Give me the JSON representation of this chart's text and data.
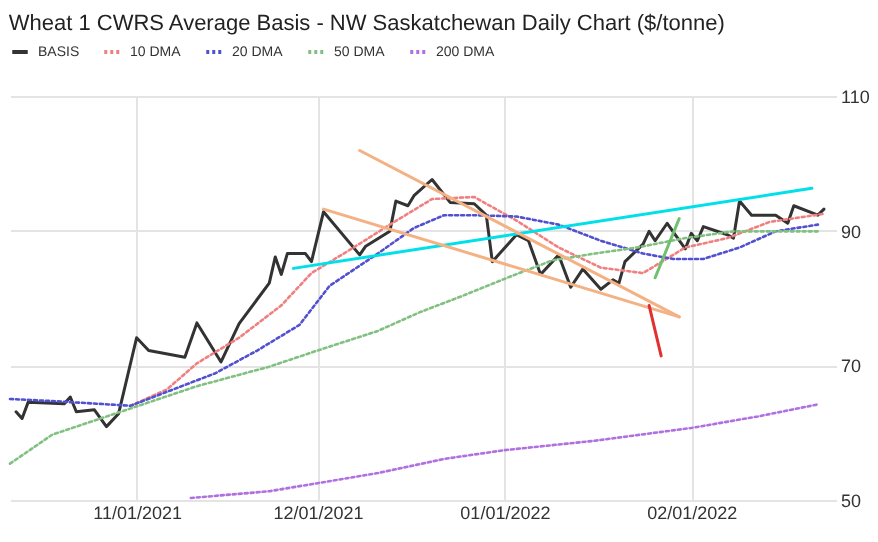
{
  "chart_data": {
    "type": "line",
    "title": "Wheat 1 CWRS Average Basis - NW Saskatchewan Daily Chart ($/tonne)",
    "xlim": [
      "2021-10-11",
      "2022-02-25"
    ],
    "xticks": [
      {
        "value": "2021-11-01",
        "label": "11/01/2021"
      },
      {
        "value": "2021-12-01",
        "label": "12/01/2021"
      },
      {
        "value": "2022-01-01",
        "label": "01/01/2022"
      },
      {
        "value": "2022-02-01",
        "label": "02/01/2022"
      }
    ],
    "ylim": [
      50,
      110
    ],
    "yticks": [
      50,
      70,
      90,
      110
    ],
    "grid": true,
    "legend": "top",
    "marker": "none",
    "series": [
      {
        "name": "BASIS",
        "color": "#333333",
        "line_style": "solid",
        "x": [
          "2021-10-12",
          "2021-10-13",
          "2021-10-14",
          "2021-10-20",
          "2021-10-21",
          "2021-10-22",
          "2021-10-25",
          "2021-10-27",
          "2021-10-29",
          "2021-11-01",
          "2021-11-03",
          "2021-11-09",
          "2021-11-11",
          "2021-11-15",
          "2021-11-18",
          "2021-11-23",
          "2021-11-24",
          "2021-11-25",
          "2021-11-26",
          "2021-11-29",
          "2021-11-30",
          "2021-12-02",
          "2021-12-08",
          "2021-12-09",
          "2021-12-13",
          "2021-12-14",
          "2021-12-16",
          "2021-12-17",
          "2021-12-20",
          "2021-12-23",
          "2021-12-27",
          "2021-12-29",
          "2021-12-30",
          "2022-01-03",
          "2022-01-05",
          "2022-01-07",
          "2022-01-10",
          "2022-01-12",
          "2022-01-14",
          "2022-01-17",
          "2022-01-19",
          "2022-01-20",
          "2022-01-21",
          "2022-01-24",
          "2022-01-25",
          "2022-01-26",
          "2022-01-28",
          "2022-01-31",
          "2022-02-01",
          "2022-02-02",
          "2022-02-03",
          "2022-02-07",
          "2022-02-08",
          "2022-02-09",
          "2022-02-11",
          "2022-02-15",
          "2022-02-17",
          "2022-02-18",
          "2022-02-22",
          "2022-02-23"
        ],
        "values": [
          63.1,
          62.1,
          64.5,
          64.3,
          65.3,
          63.1,
          63.4,
          60.9,
          62.8,
          74.1,
          72.2,
          71.2,
          76.3,
          70.5,
          76.2,
          82.2,
          86.1,
          83.5,
          86.6,
          86.6,
          85.4,
          92.8,
          86.4,
          87.7,
          89.9,
          94.4,
          93.7,
          95.2,
          97.6,
          94.2,
          94.0,
          92.3,
          85.4,
          89.4,
          88.5,
          83.5,
          86.4,
          81.6,
          84.3,
          81.3,
          82.7,
          82.2,
          85.4,
          88.0,
          89.9,
          88.5,
          91.1,
          87.3,
          89.6,
          88.5,
          90.6,
          89.4,
          88.9,
          94.4,
          92.3,
          92.3,
          91.1,
          93.7,
          92.3,
          93.2
        ]
      },
      {
        "name": "10 DMA",
        "color": "#f08080",
        "line_style": "dotted",
        "x": [
          "2021-10-31",
          "2021-11-06",
          "2021-11-11",
          "2021-11-18",
          "2021-11-25",
          "2021-11-30",
          "2021-12-07",
          "2021-12-13",
          "2021-12-20",
          "2021-12-27",
          "2022-01-03",
          "2022-01-10",
          "2022-01-17",
          "2022-01-24",
          "2022-01-31",
          "2022-02-07",
          "2022-02-14",
          "2022-02-23"
        ],
        "values": [
          64.0,
          66.4,
          70.3,
          74.1,
          78.9,
          83.7,
          87.5,
          90.9,
          94.7,
          95.0,
          91.5,
          87.5,
          84.5,
          83.7,
          87.5,
          88.9,
          91.3,
          92.5
        ]
      },
      {
        "name": "20 DMA",
        "color": "#5050d0",
        "line_style": "dotted",
        "x": [
          "2021-10-11",
          "2021-10-18",
          "2021-10-31",
          "2021-11-07",
          "2021-11-14",
          "2021-11-21",
          "2021-11-28",
          "2021-12-03",
          "2021-12-11",
          "2021-12-17",
          "2021-12-22",
          "2021-12-27",
          "2022-01-03",
          "2022-01-10",
          "2022-01-17",
          "2022-01-24",
          "2022-01-29",
          "2022-02-03",
          "2022-02-09",
          "2022-02-15",
          "2022-02-22"
        ],
        "values": [
          65.0,
          64.7,
          64.0,
          66.4,
          68.8,
          72.2,
          76.0,
          81.8,
          86.6,
          90.4,
          92.3,
          92.3,
          92.1,
          90.9,
          88.5,
          86.6,
          85.8,
          85.8,
          87.5,
          89.9,
          90.9
        ]
      },
      {
        "name": "50 DMA",
        "color": "#80c080",
        "line_style": "dotted",
        "x": [
          "2021-10-11",
          "2021-10-18",
          "2021-10-31",
          "2021-11-11",
          "2021-11-23",
          "2021-12-01",
          "2021-12-11",
          "2021-12-18",
          "2021-12-25",
          "2022-01-02",
          "2022-01-09",
          "2022-01-16",
          "2022-01-23",
          "2022-01-31",
          "2022-02-08",
          "2022-02-16",
          "2022-02-22"
        ],
        "values": [
          55.4,
          59.7,
          63.6,
          66.9,
          69.8,
          72.2,
          75.1,
          77.9,
          80.3,
          83.2,
          85.6,
          86.6,
          87.5,
          88.9,
          89.9,
          89.9,
          89.9
        ]
      },
      {
        "name": "200 DMA",
        "color": "#b070e0",
        "line_style": "dotted",
        "x": [
          "2021-11-10",
          "2021-11-23",
          "2021-12-01",
          "2021-12-11",
          "2021-12-22",
          "2022-01-01",
          "2022-01-16",
          "2022-02-01",
          "2022-02-12",
          "2022-02-22"
        ],
        "values": [
          50.3,
          51.3,
          52.5,
          54.0,
          56.1,
          57.4,
          58.8,
          60.7,
          62.4,
          64.2
        ]
      },
      {
        "color": "#00e0e8",
        "line_style": "solid",
        "x": [
          "2021-11-27",
          "2022-02-21"
        ],
        "values": [
          84.4,
          96.3
        ]
      },
      {
        "color": "#f4b183",
        "line_style": "solid",
        "x": [
          "2021-12-08",
          "2022-01-30"
        ],
        "values": [
          101.9,
          77.2
        ]
      },
      {
        "color": "#f4b183",
        "line_style": "solid",
        "x": [
          "2021-12-02",
          "2022-01-30"
        ],
        "values": [
          93.2,
          77.2
        ]
      },
      {
        "color": "#e03030",
        "line_style": "solid",
        "x": [
          "2022-01-25",
          "2022-01-27"
        ],
        "values": [
          78.9,
          71.4
        ]
      },
      {
        "color": "#70c070",
        "line_style": "solid",
        "x": [
          "2022-01-26",
          "2022-01-30"
        ],
        "values": [
          83.0,
          91.8
        ]
      }
    ]
  }
}
